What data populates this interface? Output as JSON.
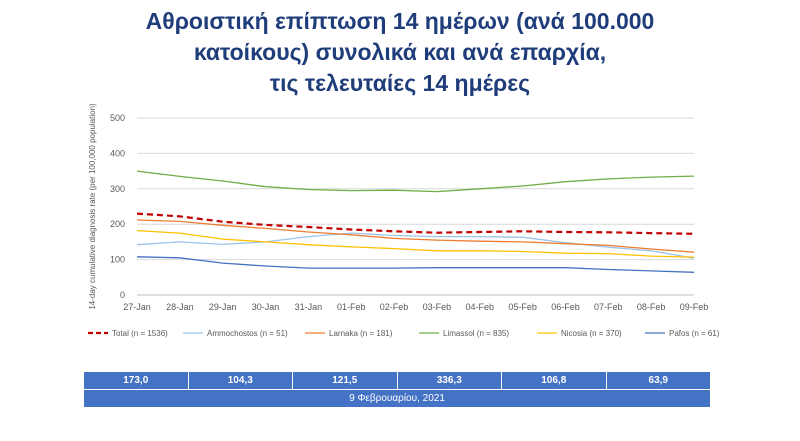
{
  "title_lines": [
    "Αθροιστική επίπτωση 14 ημέρων (ανά 100.000",
    "κατοίκους) συνολικά και ανά επαρχία,",
    "τις τελευταίες 14 ημέρες"
  ],
  "chart_data": {
    "type": "line",
    "ylabel": "14-day cumulative diagnosis rate (per 100,000 population)",
    "ylim": [
      0,
      500
    ],
    "yticks": [
      0,
      100,
      200,
      300,
      400,
      500
    ],
    "categories": [
      "27-Jan",
      "28-Jan",
      "29-Jan",
      "30-Jan",
      "31-Jan",
      "01-Feb",
      "02-Feb",
      "03-Feb",
      "04-Feb",
      "05-Feb",
      "06-Feb",
      "07-Feb",
      "08-Feb",
      "09-Feb"
    ],
    "grid": true,
    "legend_position": "bottom",
    "series": [
      {
        "name": "Total (n = 1536)",
        "color": "#c00000",
        "dashed": true,
        "width": 2.2,
        "values": [
          230,
          222,
          207,
          198,
          192,
          185,
          180,
          176,
          178,
          180,
          178,
          177,
          175,
          173
        ]
      },
      {
        "name": "Ammochostos (n = 51)",
        "color": "#9dc3e6",
        "dashed": false,
        "width": 1.3,
        "values": [
          142,
          150,
          143,
          150,
          165,
          175,
          168,
          165,
          165,
          163,
          148,
          135,
          125,
          104
        ]
      },
      {
        "name": "Larnaka (n = 181)",
        "color": "#ed7d31",
        "dashed": false,
        "width": 1.3,
        "values": [
          212,
          208,
          197,
          188,
          178,
          170,
          160,
          155,
          152,
          150,
          145,
          140,
          130,
          121
        ]
      },
      {
        "name": "Limassol (n = 835)",
        "color": "#70ad47",
        "dashed": false,
        "width": 1.3,
        "values": [
          350,
          335,
          322,
          306,
          298,
          295,
          296,
          292,
          300,
          308,
          320,
          328,
          333,
          336
        ]
      },
      {
        "name": "Nicosia (n = 370)",
        "color": "#ffc000",
        "dashed": false,
        "width": 1.3,
        "values": [
          182,
          175,
          158,
          150,
          142,
          136,
          131,
          125,
          125,
          123,
          118,
          117,
          110,
          107
        ]
      },
      {
        "name": "Pafos (n = 61)",
        "color": "#4472c4",
        "dashed": false,
        "width": 1.3,
        "values": [
          108,
          105,
          90,
          82,
          76,
          76,
          76,
          77,
          77,
          77,
          77,
          72,
          68,
          64
        ]
      }
    ]
  },
  "summary_values": [
    "173,0",
    "104,3",
    "121,5",
    "336,3",
    "106,8",
    "63,9"
  ],
  "summary_date": "9 Φεβρουαρίου, 2021"
}
